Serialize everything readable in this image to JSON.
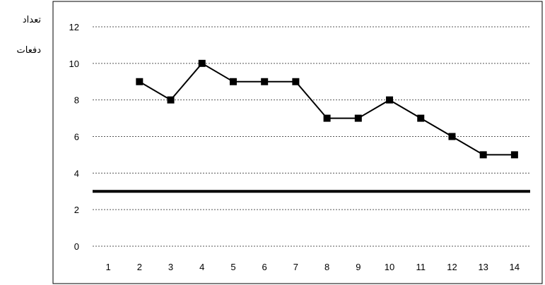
{
  "chart_data": {
    "type": "line",
    "ylabel_lines": [
      "تعداد",
      "دفعات"
    ],
    "x": [
      1,
      2,
      3,
      4,
      5,
      6,
      7,
      8,
      9,
      10,
      11,
      12,
      13,
      14
    ],
    "xlim": [
      0.5,
      14.5
    ],
    "ylim": [
      0,
      12
    ],
    "yticks": [
      0,
      2,
      4,
      6,
      8,
      10,
      12
    ],
    "grid": true,
    "series": [
      {
        "x": [
          2,
          3,
          4,
          5,
          6,
          7,
          8,
          9,
          10,
          11,
          12,
          13,
          14
        ],
        "values": [
          9,
          8,
          10,
          9,
          9,
          9,
          7,
          7,
          8,
          7,
          6,
          5,
          5
        ],
        "marker": "square",
        "color": "#000000"
      }
    ],
    "reference_line": {
      "y": 3,
      "color": "#000000"
    }
  }
}
